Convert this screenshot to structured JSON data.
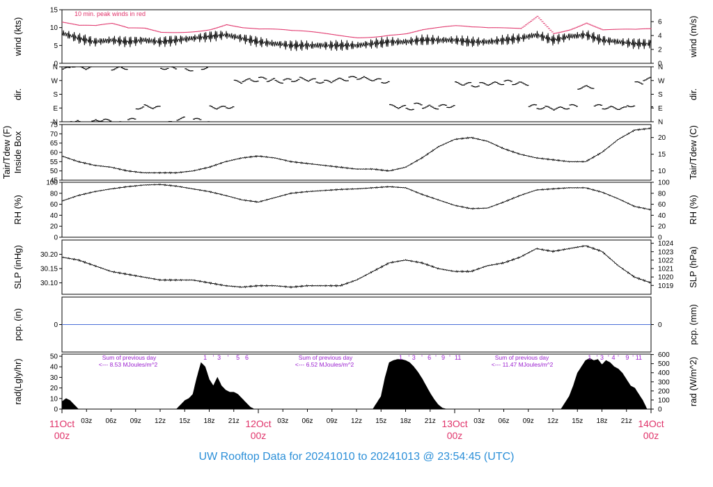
{
  "title": "UW Rooftop Data for 20241010  to  20241013 @ 23:54:45  (UTC)",
  "colors": {
    "line": "#000000",
    "peak": "#e0336a",
    "date_label": "#e0336a",
    "annotation": "#9b20d0",
    "precip_line": "#4a6fd8",
    "title": "#2b8fd8"
  },
  "chart_data": [
    {
      "id": "wind",
      "type": "line",
      "ylabel_left": "wind (kts)",
      "ylabel_right": "wind (m/s)",
      "ylim": [
        0,
        15
      ],
      "yticks_left": [
        "0",
        "5",
        "10",
        "15"
      ],
      "yticks_right": [
        "0",
        "2",
        "4",
        "6"
      ],
      "annotation": "10 min. peak winds in red",
      "series": [
        {
          "role": "mean",
          "x_hours": [
            0,
            2,
            4,
            6,
            8,
            10,
            12,
            14,
            16,
            18,
            20,
            22,
            24,
            26,
            28,
            30,
            32,
            34,
            36,
            38,
            40,
            42,
            44,
            46,
            48,
            50,
            52,
            54,
            56,
            58,
            60,
            62,
            64,
            66,
            68,
            70,
            72
          ],
          "values": [
            8.5,
            7,
            6,
            6.5,
            6,
            6.5,
            6,
            6.5,
            7,
            7.5,
            8,
            7,
            6,
            5.5,
            5,
            5,
            5,
            5,
            5,
            5.5,
            6,
            6,
            6.5,
            6.5,
            6.5,
            6,
            6,
            6.5,
            7,
            8,
            6.5,
            7.5,
            8,
            6.5,
            6,
            5.5,
            5.5
          ]
        },
        {
          "role": "peak",
          "x_hours": [
            0,
            2,
            4,
            6,
            8,
            10,
            12,
            14,
            16,
            18,
            20,
            22,
            24,
            26,
            28,
            30,
            32,
            34,
            36,
            38,
            40,
            42,
            44,
            46,
            48,
            50,
            52,
            54,
            56,
            58,
            60,
            62,
            64,
            66,
            68,
            70,
            72
          ],
          "values": [
            11.5,
            10,
            9.5,
            10,
            9,
            9.5,
            9,
            9.5,
            10,
            10.5,
            11.5,
            10,
            9,
            8.5,
            8,
            8,
            8,
            8,
            8,
            8.5,
            9,
            9,
            9.5,
            9.5,
            9.5,
            9,
            9,
            9.5,
            10,
            14,
            9.5,
            10.5,
            12,
            9.5,
            9,
            8.5,
            8.5
          ]
        }
      ]
    },
    {
      "id": "dir",
      "type": "scatter",
      "ylabel_left": "dir.",
      "ylabel_right": "dir.",
      "ylim": [
        0,
        360
      ],
      "yticks_left": [
        "N",
        "E",
        "S",
        "W",
        "N"
      ],
      "yticks_right": [
        "N",
        "E",
        "S",
        "W",
        "N"
      ],
      "x_hours": [
        0,
        1,
        2,
        3,
        4,
        5,
        6,
        7,
        8,
        9,
        10,
        11,
        12,
        13,
        14,
        15,
        16,
        17,
        18,
        19,
        20,
        21,
        22,
        23,
        24,
        25,
        26,
        27,
        28,
        29,
        30,
        31,
        32,
        33,
        34,
        35,
        36,
        37,
        38,
        39,
        40,
        41,
        42,
        43,
        44,
        45,
        46,
        47,
        48,
        49,
        50,
        51,
        52,
        53,
        54,
        55,
        56,
        57,
        58,
        59,
        60,
        61,
        62,
        63,
        64,
        65,
        66,
        67,
        68,
        69,
        70,
        71,
        72
      ],
      "values": [
        345,
        10,
        350,
        355,
        15,
        5,
        350,
        355,
        10,
        95,
        100,
        90,
        355,
        350,
        20,
        345,
        10,
        355,
        95,
        90,
        100,
        260,
        270,
        275,
        280,
        275,
        265,
        270,
        275,
        280,
        270,
        265,
        260,
        275,
        280,
        285,
        290,
        280,
        270,
        265,
        100,
        95,
        90,
        110,
        100,
        95,
        100,
        105,
        250,
        245,
        240,
        245,
        250,
        255,
        260,
        255,
        250,
        100,
        95,
        90,
        85,
        95,
        100,
        225,
        230,
        100,
        95,
        90,
        85,
        110,
        250,
        280,
        95
      ]
    },
    {
      "id": "temp",
      "type": "line",
      "ylabel_left": [
        "Tair/Tdew (F)",
        "Inside Box"
      ],
      "ylabel_right": "Tair/Tdew (C)",
      "ylim": [
        45,
        75
      ],
      "yticks_left": [
        "45",
        "50",
        "55",
        "60",
        "65",
        "70",
        "75"
      ],
      "yticks_right": [
        "10",
        "15",
        "20"
      ],
      "x_hours": [
        0,
        2,
        4,
        6,
        8,
        10,
        12,
        14,
        16,
        18,
        20,
        22,
        24,
        26,
        28,
        30,
        32,
        34,
        36,
        38,
        40,
        42,
        44,
        46,
        48,
        50,
        52,
        54,
        56,
        58,
        60,
        62,
        64,
        66,
        68,
        70,
        72
      ],
      "values": [
        58,
        55,
        53,
        52,
        50,
        49,
        49,
        49,
        50,
        52,
        55,
        57,
        58,
        57,
        55,
        54,
        53,
        52,
        51,
        51,
        50,
        52,
        57,
        63,
        67,
        68,
        66,
        62,
        59,
        57,
        56,
        55,
        55,
        60,
        67,
        72,
        73
      ]
    },
    {
      "id": "rh",
      "type": "line",
      "ylabel_left": "RH (%)",
      "ylabel_right": "RH (%)",
      "ylim": [
        0,
        100
      ],
      "yticks_left": [
        "0",
        "20",
        "40",
        "60",
        "80",
        "100"
      ],
      "yticks_right": [
        "0",
        "20",
        "40",
        "60",
        "80",
        "100"
      ],
      "x_hours": [
        0,
        2,
        4,
        6,
        8,
        10,
        12,
        14,
        16,
        18,
        20,
        22,
        24,
        26,
        28,
        30,
        32,
        34,
        36,
        38,
        40,
        42,
        44,
        46,
        48,
        50,
        52,
        54,
        56,
        58,
        60,
        62,
        64,
        66,
        68,
        70,
        72
      ],
      "values": [
        66,
        76,
        83,
        88,
        92,
        95,
        96,
        93,
        88,
        83,
        76,
        68,
        64,
        72,
        80,
        83,
        85,
        87,
        88,
        90,
        92,
        90,
        78,
        68,
        58,
        52,
        53,
        64,
        76,
        86,
        88,
        90,
        90,
        82,
        70,
        56,
        50
      ]
    },
    {
      "id": "slp",
      "type": "line",
      "ylabel_left": "SLP (inHg)",
      "ylabel_right": "SLP (hPa)",
      "ylim": [
        30.06,
        30.25
      ],
      "yticks_left": [
        "30.10",
        "30.15",
        "30.20"
      ],
      "yticks_right": [
        "1019",
        "1020",
        "1021",
        "1022",
        "1023",
        "1024"
      ],
      "x_hours": [
        0,
        2,
        4,
        6,
        8,
        10,
        12,
        14,
        16,
        18,
        20,
        22,
        24,
        26,
        28,
        30,
        32,
        34,
        36,
        38,
        40,
        42,
        44,
        46,
        48,
        50,
        52,
        54,
        56,
        58,
        60,
        62,
        64,
        66,
        68,
        70,
        72
      ],
      "values": [
        30.19,
        30.18,
        30.16,
        30.14,
        30.13,
        30.12,
        30.11,
        30.11,
        30.11,
        30.1,
        30.09,
        30.085,
        30.09,
        30.09,
        30.085,
        30.09,
        30.09,
        30.09,
        30.11,
        30.14,
        30.17,
        30.18,
        30.17,
        30.15,
        30.14,
        30.14,
        30.16,
        30.17,
        30.19,
        30.22,
        30.21,
        30.22,
        30.23,
        30.21,
        30.16,
        30.12,
        30.1
      ]
    },
    {
      "id": "pcp",
      "type": "line",
      "ylabel_left": "pcp. (in)",
      "ylabel_right": "pcp. (mm)",
      "ylim": [
        -1,
        1
      ],
      "yticks_left": [
        "0"
      ],
      "yticks_right": [
        "0"
      ],
      "x_hours": [
        0,
        72
      ],
      "values": [
        0,
        0
      ]
    },
    {
      "id": "rad",
      "type": "area",
      "ylabel_left": "rad(Lgly/hr)",
      "ylabel_right": "rad (W/m^2)",
      "ylim": [
        0,
        52
      ],
      "yticks_left": [
        "0",
        "10",
        "20",
        "30",
        "40",
        "50"
      ],
      "yticks_right": [
        "0",
        "100",
        "200",
        "300",
        "400",
        "500",
        "600"
      ],
      "x_hours": [
        0,
        0.5,
        1,
        1.5,
        2,
        14,
        14.5,
        15,
        15.5,
        16,
        16.5,
        17,
        17.5,
        18,
        18.5,
        19,
        19.5,
        20,
        20.5,
        21,
        21.5,
        22,
        22.5,
        23,
        23.5,
        24,
        38,
        38.5,
        39,
        39.5,
        40,
        40.5,
        41,
        41.5,
        42,
        42.5,
        43,
        43.5,
        44,
        44.5,
        45,
        45.5,
        46,
        46.5,
        47,
        47.5,
        48,
        61,
        61.5,
        62,
        62.5,
        63,
        63.5,
        64,
        64.5,
        65,
        65.5,
        66,
        66.5,
        67,
        67.5,
        68,
        68.5,
        69,
        69.5,
        70,
        70.5,
        71,
        71.5,
        72
      ],
      "values": [
        7,
        10,
        8,
        4,
        0,
        0,
        4,
        8,
        10,
        14,
        30,
        44,
        40,
        28,
        22,
        30,
        22,
        18,
        16,
        16,
        14,
        10,
        6,
        2,
        0,
        0,
        0,
        6,
        12,
        30,
        44,
        46,
        47,
        47,
        46,
        44,
        40,
        35,
        29,
        22,
        15,
        9,
        4,
        1,
        0,
        0,
        0,
        0,
        6,
        12,
        22,
        34,
        40,
        46,
        48,
        46,
        47,
        42,
        46,
        44,
        40,
        38,
        34,
        28,
        22,
        20,
        14,
        8,
        0,
        0
      ]
    },
    {
      "id": "rad_annotations",
      "type": "table",
      "daily_sums": [
        {
          "x_hours": 5,
          "line1": "Sum of previous day",
          "line2": "<--- 8.53 MJoules/m^2"
        },
        {
          "x_hours": 29,
          "line1": "Sum of previous day",
          "line2": "<--- 6.52 MJoules/m^2"
        },
        {
          "x_hours": 53,
          "line1": "Sum of previous day",
          "line2": "<--- 11.47 MJoules/m^2"
        }
      ],
      "hour_markers": [
        {
          "x_hours": 17.5,
          "label": "1"
        },
        {
          "x_hours": 18.5,
          "label": "'"
        },
        {
          "x_hours": 19.2,
          "label": "3"
        },
        {
          "x_hours": 20.3,
          "label": "'"
        },
        {
          "x_hours": 21.5,
          "label": "5"
        },
        {
          "x_hours": 22.6,
          "label": "6"
        },
        {
          "x_hours": 41.4,
          "label": "1"
        },
        {
          "x_hours": 42.4,
          "label": "'"
        },
        {
          "x_hours": 43.0,
          "label": "3"
        },
        {
          "x_hours": 44.0,
          "label": "'"
        },
        {
          "x_hours": 44.9,
          "label": "6"
        },
        {
          "x_hours": 45.7,
          "label": "'"
        },
        {
          "x_hours": 46.6,
          "label": "9"
        },
        {
          "x_hours": 47.4,
          "label": "'"
        },
        {
          "x_hours": 48.4,
          "label": "11"
        },
        {
          "x_hours": 64.5,
          "label": "1"
        },
        {
          "x_hours": 65.4,
          "label": "'"
        },
        {
          "x_hours": 66.0,
          "label": "3"
        },
        {
          "x_hours": 66.8,
          "label": "'"
        },
        {
          "x_hours": 67.4,
          "label": "4"
        },
        {
          "x_hours": 68.0,
          "label": "'"
        },
        {
          "x_hours": 69.1,
          "label": "9"
        },
        {
          "x_hours": 69.8,
          "label": "'"
        },
        {
          "x_hours": 70.5,
          "label": "11"
        }
      ]
    }
  ],
  "x_axis": {
    "range_hours": [
      0,
      72
    ],
    "hour_ticks": [
      {
        "x_hours": 3,
        "label": "03z"
      },
      {
        "x_hours": 6,
        "label": "06z"
      },
      {
        "x_hours": 9,
        "label": "09z"
      },
      {
        "x_hours": 12,
        "label": "12z"
      },
      {
        "x_hours": 15,
        "label": "15z"
      },
      {
        "x_hours": 18,
        "label": "18z"
      },
      {
        "x_hours": 21,
        "label": "21z"
      },
      {
        "x_hours": 27,
        "label": "03z"
      },
      {
        "x_hours": 30,
        "label": "06z"
      },
      {
        "x_hours": 33,
        "label": "09z"
      },
      {
        "x_hours": 36,
        "label": "12z"
      },
      {
        "x_hours": 39,
        "label": "15z"
      },
      {
        "x_hours": 42,
        "label": "18z"
      },
      {
        "x_hours": 45,
        "label": "21z"
      },
      {
        "x_hours": 51,
        "label": "03z"
      },
      {
        "x_hours": 54,
        "label": "06z"
      },
      {
        "x_hours": 57,
        "label": "09z"
      },
      {
        "x_hours": 60,
        "label": "12z"
      },
      {
        "x_hours": 63,
        "label": "15z"
      },
      {
        "x_hours": 66,
        "label": "18z"
      },
      {
        "x_hours": 69,
        "label": "21z"
      }
    ],
    "date_ticks": [
      {
        "x_hours": 0,
        "date": "11Oct",
        "hour": "00z"
      },
      {
        "x_hours": 24,
        "date": "12Oct",
        "hour": "00z"
      },
      {
        "x_hours": 48,
        "date": "13Oct",
        "hour": "00z"
      },
      {
        "x_hours": 72,
        "date": "14Oct",
        "hour": "00z"
      }
    ]
  }
}
